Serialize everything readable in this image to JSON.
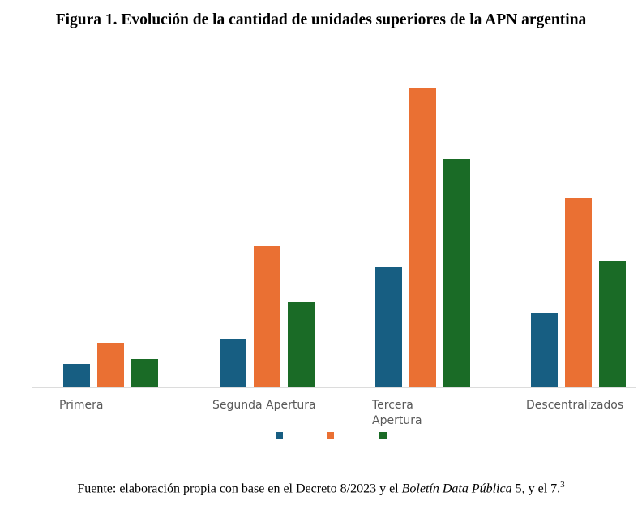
{
  "title": "Figura 1. Evolución de la cantidad de unidades superiores de la APN argentina",
  "source": {
    "prefix": "Fuente: elaboración propia con base en el Decreto 8/2023 y el ",
    "italic": "Boletín Data Pública",
    "suffix": " 5, y el 7.",
    "sup": "3"
  },
  "chart_data": {
    "type": "bar",
    "title": "Figura 1. Evolución de la cantidad de unidades superiores de la APN argentina",
    "xlabel": "",
    "ylabel": "",
    "categories": [
      [
        "Primera"
      ],
      [
        "Segunda Apertura"
      ],
      [
        "Tercera",
        "Apertura"
      ],
      [
        "Descentralizados"
      ]
    ],
    "category_labels": [
      "Primera",
      "Segunda Apertura",
      "Tercera Apertura",
      "Descentralizados"
    ],
    "series": [
      {
        "name": "",
        "color": "#175E82",
        "values": [
          28,
          59,
          148,
          91
        ]
      },
      {
        "name": "",
        "color": "#EA7033",
        "values": [
          54,
          174,
          368,
          233
        ]
      },
      {
        "name": "",
        "color": "#1A6B26",
        "values": [
          34,
          104,
          281,
          155
        ]
      }
    ],
    "ylim": [
      0,
      370
    ],
    "grid": false,
    "legend": "bottom",
    "note": "values are relative magnitudes; no y-axis shown"
  }
}
